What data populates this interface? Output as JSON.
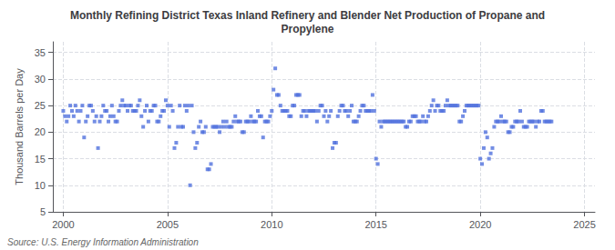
{
  "chart_data": {
    "type": "scatter",
    "title": "Monthly Refining District Texas Inland Refinery and Blender Net Production of Propane and\nPropylene",
    "ylabel": "Thousand Barrels per Day",
    "source": "Source: U.S. Energy Information Administration",
    "marker": "square",
    "grid": true,
    "xlim": [
      1999.5,
      2025.5
    ],
    "xticks": [
      2000,
      2005,
      2010,
      2015,
      2020,
      2025
    ],
    "ylim": [
      5,
      37
    ],
    "yticks": [
      5,
      10,
      15,
      20,
      25,
      30,
      35
    ],
    "x": [
      2000.0,
      2000.083,
      2000.167,
      2000.25,
      2000.333,
      2000.417,
      2000.5,
      2000.583,
      2000.667,
      2000.75,
      2000.833,
      2000.917,
      2001.0,
      2001.083,
      2001.167,
      2001.25,
      2001.333,
      2001.417,
      2001.5,
      2001.583,
      2001.667,
      2001.75,
      2001.833,
      2001.917,
      2002.0,
      2002.083,
      2002.167,
      2002.25,
      2002.333,
      2002.417,
      2002.5,
      2002.583,
      2002.667,
      2002.75,
      2002.833,
      2002.917,
      2003.0,
      2003.083,
      2003.167,
      2003.25,
      2003.333,
      2003.417,
      2003.5,
      2003.583,
      2003.667,
      2003.75,
      2003.833,
      2003.917,
      2004.0,
      2004.083,
      2004.167,
      2004.25,
      2004.333,
      2004.417,
      2004.5,
      2004.583,
      2004.667,
      2004.75,
      2004.833,
      2004.917,
      2005.0,
      2005.083,
      2005.167,
      2005.25,
      2005.333,
      2005.417,
      2005.5,
      2005.583,
      2005.667,
      2005.75,
      2005.833,
      2005.917,
      2006.0,
      2006.083,
      2006.167,
      2006.25,
      2006.333,
      2006.417,
      2006.5,
      2006.583,
      2006.667,
      2006.75,
      2006.833,
      2006.917,
      2007.0,
      2007.083,
      2007.167,
      2007.25,
      2007.333,
      2007.417,
      2007.5,
      2007.583,
      2007.667,
      2007.75,
      2007.833,
      2007.917,
      2008.0,
      2008.083,
      2008.167,
      2008.25,
      2008.333,
      2008.417,
      2008.5,
      2008.583,
      2008.667,
      2008.75,
      2008.833,
      2008.917,
      2009.0,
      2009.083,
      2009.167,
      2009.25,
      2009.333,
      2009.417,
      2009.5,
      2009.583,
      2009.667,
      2009.75,
      2009.833,
      2009.917,
      2010.0,
      2010.083,
      2010.167,
      2010.25,
      2010.333,
      2010.417,
      2010.5,
      2010.583,
      2010.667,
      2010.75,
      2010.833,
      2010.917,
      2011.0,
      2011.083,
      2011.167,
      2011.25,
      2011.333,
      2011.417,
      2011.5,
      2011.583,
      2011.667,
      2011.75,
      2011.833,
      2011.917,
      2012.0,
      2012.083,
      2012.167,
      2012.25,
      2012.333,
      2012.417,
      2012.5,
      2012.583,
      2012.667,
      2012.75,
      2012.833,
      2012.917,
      2013.0,
      2013.083,
      2013.167,
      2013.25,
      2013.333,
      2013.417,
      2013.5,
      2013.583,
      2013.667,
      2013.75,
      2013.833,
      2013.917,
      2014.0,
      2014.083,
      2014.167,
      2014.25,
      2014.333,
      2014.417,
      2014.5,
      2014.583,
      2014.667,
      2014.75,
      2014.833,
      2014.917,
      2015.0,
      2015.083,
      2015.167,
      2015.25,
      2015.333,
      2015.417,
      2015.5,
      2015.583,
      2015.667,
      2015.75,
      2015.833,
      2015.917,
      2016.0,
      2016.083,
      2016.167,
      2016.25,
      2016.333,
      2016.417,
      2016.5,
      2016.583,
      2016.667,
      2016.75,
      2016.833,
      2016.917,
      2017.0,
      2017.083,
      2017.167,
      2017.25,
      2017.333,
      2017.417,
      2017.5,
      2017.583,
      2017.667,
      2017.75,
      2017.833,
      2017.917,
      2018.0,
      2018.083,
      2018.167,
      2018.25,
      2018.333,
      2018.417,
      2018.5,
      2018.583,
      2018.667,
      2018.75,
      2018.833,
      2018.917,
      2019.0,
      2019.083,
      2019.167,
      2019.25,
      2019.333,
      2019.417,
      2019.5,
      2019.583,
      2019.667,
      2019.75,
      2019.833,
      2019.917,
      2020.0,
      2020.083,
      2020.167,
      2020.25,
      2020.333,
      2020.417,
      2020.5,
      2020.583,
      2020.667,
      2020.75,
      2020.833,
      2020.917,
      2021.0,
      2021.083,
      2021.167,
      2021.25,
      2021.333,
      2021.417,
      2021.5,
      2021.583,
      2021.667,
      2021.75,
      2021.833,
      2021.917,
      2022.0,
      2022.083,
      2022.167,
      2022.25,
      2022.333,
      2022.417,
      2022.5,
      2022.583,
      2022.667,
      2022.75,
      2022.833,
      2022.917,
      2023.0,
      2023.083,
      2023.167,
      2023.25,
      2023.333,
      2023.417
    ],
    "values": [
      24,
      23,
      22,
      23,
      25,
      24,
      23,
      25,
      24,
      22,
      24,
      25,
      19,
      22,
      23,
      25,
      25,
      24,
      22,
      23,
      17,
      22,
      23,
      25,
      24,
      24,
      22,
      23,
      25,
      23,
      22,
      22,
      24,
      25,
      26,
      25,
      25,
      24,
      25,
      25,
      24,
      24,
      24,
      25,
      26,
      23,
      21,
      24,
      25,
      22,
      24,
      24,
      25,
      25,
      22,
      22,
      23,
      24,
      24,
      26,
      25,
      21,
      25,
      24,
      17,
      18,
      21,
      25,
      21,
      21,
      25,
      24,
      25,
      10,
      25,
      20,
      17,
      18,
      21,
      22,
      20,
      20,
      21,
      13,
      13,
      14,
      21,
      21,
      21,
      21,
      20,
      21,
      22,
      21,
      22,
      21,
      21,
      21,
      22,
      23,
      22,
      22,
      22,
      20,
      20,
      22,
      22,
      22,
      23,
      22,
      22,
      22,
      24,
      23,
      23,
      19,
      22,
      22,
      22,
      23,
      24,
      28,
      32,
      27,
      27,
      25,
      24,
      24,
      24,
      24,
      23,
      23,
      25,
      25,
      27,
      27,
      27,
      23,
      24,
      24,
      23,
      24,
      24,
      24,
      24,
      24,
      22,
      24,
      25,
      25,
      23,
      24,
      22,
      23,
      24,
      17,
      18,
      18,
      23,
      24,
      25,
      25,
      24,
      24,
      23,
      24,
      25,
      22,
      22,
      22,
      23,
      24,
      25,
      25,
      24,
      24,
      24,
      24,
      27,
      24,
      15,
      14,
      22,
      21,
      22,
      22,
      22,
      22,
      22,
      22,
      22,
      22,
      22,
      22,
      22,
      22,
      22,
      21,
      21,
      22,
      22,
      23,
      23,
      23,
      22,
      22,
      22,
      23,
      22,
      22,
      23,
      24,
      25,
      26,
      24,
      25,
      25,
      24,
      24,
      24,
      25,
      26,
      25,
      25,
      25,
      25,
      25,
      25,
      22,
      22,
      23,
      24,
      25,
      25,
      25,
      25,
      25,
      25,
      25,
      25,
      15,
      14,
      17,
      20,
      19,
      15,
      16,
      17,
      21,
      22,
      22,
      22,
      23,
      22,
      22,
      22,
      20,
      20,
      21,
      21,
      22,
      22,
      22,
      24,
      22,
      21,
      21,
      21,
      22,
      22,
      22,
      22,
      21,
      22,
      22,
      24,
      24,
      22,
      22,
      22,
      22,
      22
    ]
  }
}
